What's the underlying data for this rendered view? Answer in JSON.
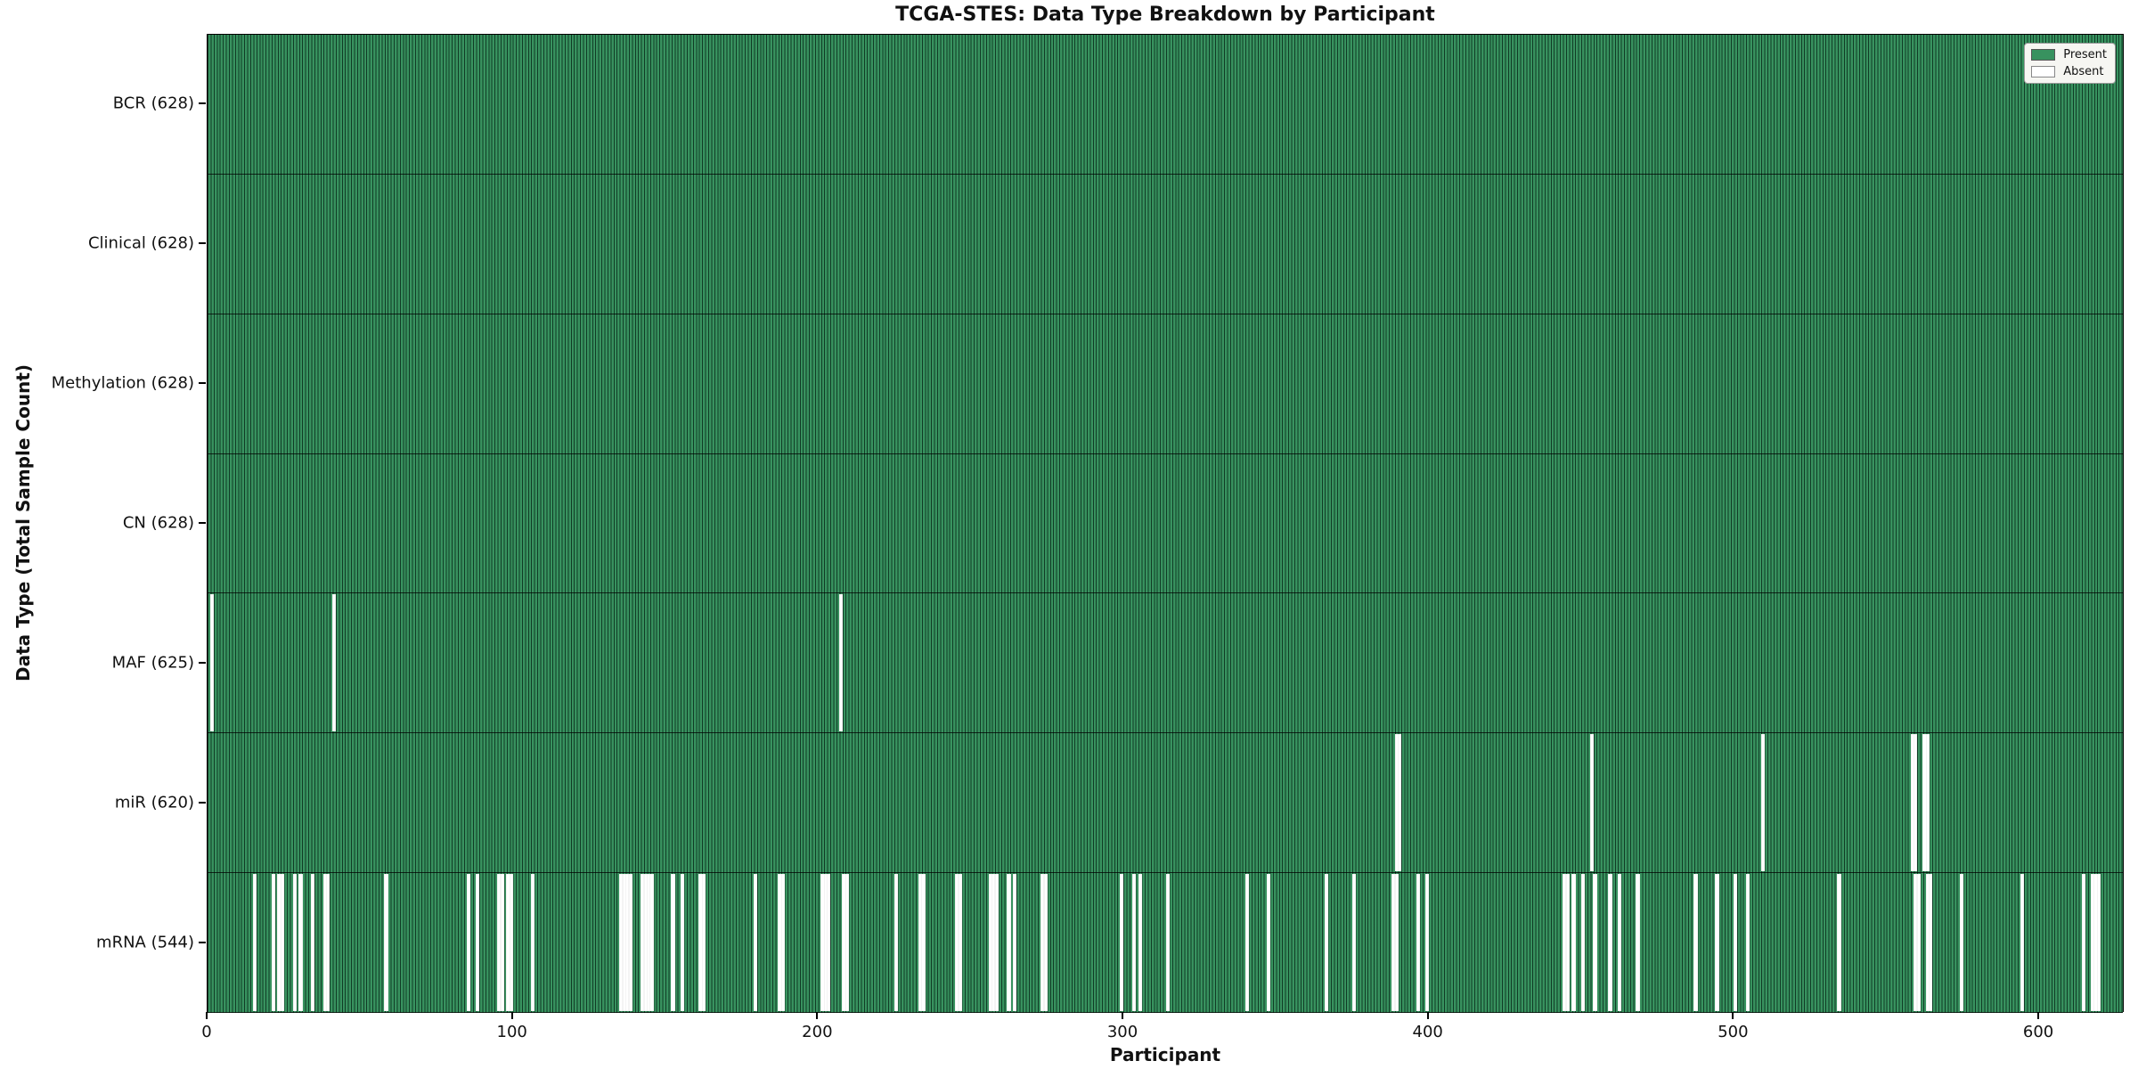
{
  "chart_data": {
    "type": "heatmap",
    "title": "TCGA-STES: Data Type Breakdown by Participant",
    "xlabel": "Participant",
    "ylabel": "Data Type (Total Sample Count)",
    "n_participants": 628,
    "x_ticks": [
      0,
      100,
      200,
      300,
      400,
      500,
      600
    ],
    "grid": false,
    "legend_position": "top-right",
    "legend": [
      {
        "label": "Present",
        "color": "#38925f"
      },
      {
        "label": "Absent",
        "color": "#ffffff"
      }
    ],
    "colors": {
      "present": "#38925f",
      "present_edge": "#173a29",
      "absent": "#ffffff",
      "axis": "#000000",
      "legend_bg": "#f6f6f2"
    },
    "rows": [
      {
        "name": "bcr",
        "label": "BCR (628)",
        "present_count": 628,
        "absent_participants": []
      },
      {
        "name": "clinical",
        "label": "Clinical (628)",
        "present_count": 628,
        "absent_participants": []
      },
      {
        "name": "methylation",
        "label": "Methylation (628)",
        "present_count": 628,
        "absent_participants": []
      },
      {
        "name": "cn",
        "label": "CN (628)",
        "present_count": 628,
        "absent_participants": []
      },
      {
        "name": "maf",
        "label": "MAF (625)",
        "present_count": 625,
        "absent_participants": [
          1,
          41,
          207
        ]
      },
      {
        "name": "mir",
        "label": "miR (620)",
        "present_count": 620,
        "absent_participants": [
          389,
          390,
          453,
          509,
          558,
          559,
          562,
          563
        ]
      },
      {
        "name": "mrna",
        "label": "mRNA (544)",
        "present_count": 544,
        "absent_participants": [
          15,
          21,
          23,
          24,
          28,
          30,
          34,
          38,
          39,
          58,
          85,
          88,
          95,
          96,
          98,
          99,
          106,
          135,
          136,
          137,
          138,
          142,
          143,
          144,
          145,
          152,
          155,
          161,
          162,
          179,
          187,
          188,
          201,
          202,
          203,
          208,
          209,
          225,
          233,
          234,
          245,
          246,
          256,
          257,
          258,
          262,
          264,
          273,
          274,
          299,
          303,
          305,
          314,
          340,
          347,
          366,
          375,
          388,
          389,
          396,
          399,
          444,
          445,
          447,
          450,
          454,
          459,
          462,
          468,
          487,
          494,
          500,
          504,
          534,
          559,
          560,
          563,
          564,
          574,
          594,
          614,
          617,
          618,
          619
        ]
      }
    ]
  }
}
